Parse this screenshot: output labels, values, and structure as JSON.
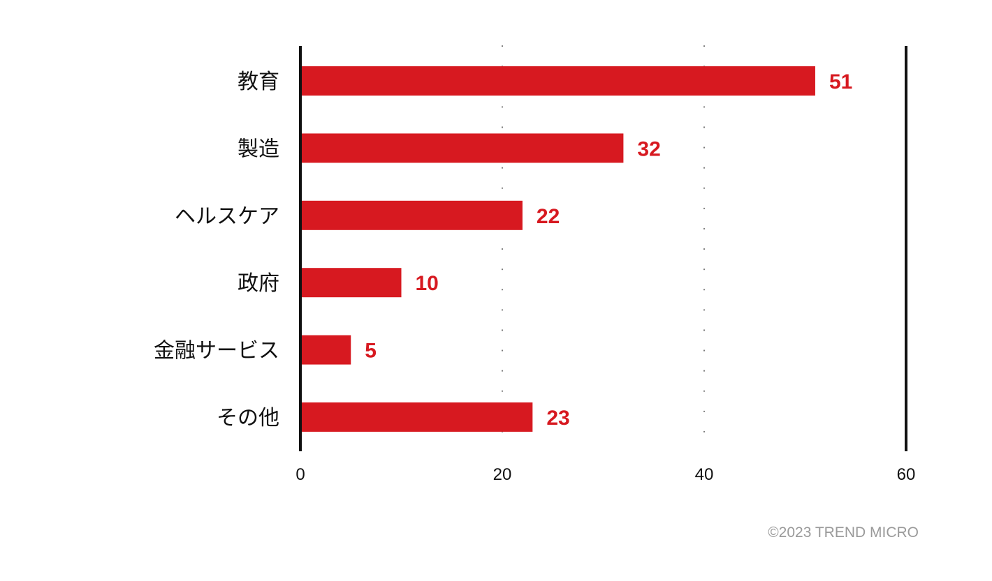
{
  "chart_data": {
    "type": "bar",
    "orientation": "horizontal",
    "categories": [
      "教育",
      "製造",
      "ヘルスケア",
      "政府",
      "金融サービス",
      "その他"
    ],
    "values": [
      51,
      32,
      22,
      10,
      5,
      23
    ],
    "xlim": [
      0,
      60
    ],
    "xticks": [
      0,
      20,
      40,
      60
    ],
    "grid": "vertical-dotted",
    "bar_color": "#d71920",
    "value_label_color": "#d71920",
    "axis_color": "#111111",
    "title": "",
    "xlabel": "",
    "ylabel": ""
  },
  "footer": {
    "copyright": "©2023 TREND MICRO"
  }
}
